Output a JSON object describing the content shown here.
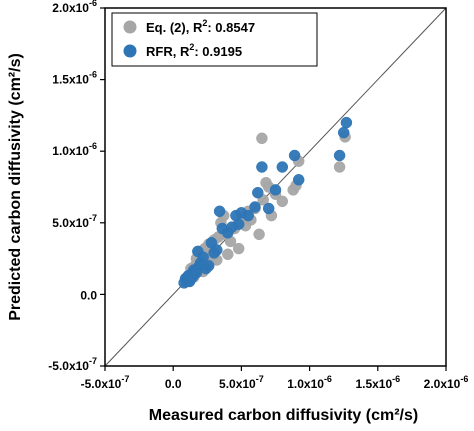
{
  "chart_data": {
    "type": "scatter",
    "xlabel": "Measured carbon diffusivity (cm²/s)",
    "ylabel": "Predicted carbon diffusivity (cm²/s)",
    "xlim": [
      -5e-07,
      2e-06
    ],
    "ylim": [
      -5e-07,
      2e-06
    ],
    "x_ticks": [
      -5e-07,
      0,
      5e-07,
      1e-06,
      1.5e-06,
      2e-06
    ],
    "y_ticks": [
      -5e-07,
      0,
      5e-07,
      1e-06,
      1.5e-06,
      2e-06
    ],
    "x_tick_labels": [
      {
        "base": "-5.0x10",
        "exp": "-7"
      },
      {
        "base": "0.0",
        "exp": ""
      },
      {
        "base": "5.0x10",
        "exp": "-7"
      },
      {
        "base": "1.0x10",
        "exp": "-6"
      },
      {
        "base": "1.5x10",
        "exp": "-6"
      },
      {
        "base": "2.0x10",
        "exp": "-6"
      }
    ],
    "y_tick_labels": [
      {
        "base": "-5.0x10",
        "exp": "-7"
      },
      {
        "base": "0.0",
        "exp": ""
      },
      {
        "base": "5.0x10",
        "exp": "-7"
      },
      {
        "base": "1.0x10",
        "exp": "-6"
      },
      {
        "base": "1.5x10",
        "exp": "-6"
      },
      {
        "base": "2.0x10",
        "exp": "-6"
      }
    ],
    "reference_line": {
      "type": "y=x",
      "color": "#555555"
    },
    "legend": {
      "placement": "top-left"
    },
    "grid": false,
    "series": [
      {
        "name": "Eq. (2), R²: 0.8547",
        "legend_prefix": "Eq. (2), R",
        "legend_exp": "2",
        "legend_suffix": ": 0.8547",
        "color": "#a6a6a6",
        "x": [
          1e-07,
          1.2e-07,
          1.4e-07,
          1.5e-07,
          1.7e-07,
          1.8e-07,
          2e-07,
          2.1e-07,
          2.2e-07,
          2.3e-07,
          2.5e-07,
          2.6e-07,
          2.8e-07,
          3e-07,
          3.2e-07,
          3.5e-07,
          3.8e-07,
          4e-07,
          4.5e-07,
          4.8e-07,
          5e-07,
          5.3e-07,
          5.5e-07,
          6e-07,
          6.3e-07,
          6.5e-07,
          7e-07,
          7.2e-07,
          7.5e-07,
          8e-07,
          8.8e-07,
          9.2e-07,
          1.22e-06,
          1.26e-06,
          1.3e-07,
          1.6e-07,
          1.9e-07,
          2.4e-07,
          2.7e-07,
          3.3e-07,
          4.2e-07,
          5.7e-07,
          6.8e-07,
          9e-07,
          3.7e-07,
          6.6e-07
        ],
        "y": [
          1e-07,
          1.3e-07,
          1.5e-07,
          1.2e-07,
          2.5e-07,
          1.8e-07,
          2.8e-07,
          2.2e-07,
          1.6e-07,
          3.2e-07,
          2e-07,
          3.5e-07,
          2.6e-07,
          3.8e-07,
          2.4e-07,
          5e-07,
          4.2e-07,
          2.8e-07,
          4.6e-07,
          3.2e-07,
          5.2e-07,
          4.8e-07,
          5.8e-07,
          6e-07,
          4.2e-07,
          1.09e-06,
          7.5e-07,
          5.5e-07,
          7e-07,
          6.5e-07,
          7.3e-07,
          9.3e-07,
          8.9e-07,
          1.1e-06,
          1.8e-07,
          2e-07,
          3e-07,
          2.7e-07,
          3e-07,
          4e-07,
          3.7e-07,
          5.2e-07,
          7.8e-07,
          7.6e-07,
          5.5e-07,
          6.6e-07
        ]
      },
      {
        "name": "RFR, R²: 0.9195",
        "legend_prefix": "RFR, R",
        "legend_exp": "2",
        "legend_suffix": ": 0.9195",
        "color": "#2e75b6",
        "x": [
          8e-08,
          9e-08,
          1e-07,
          1.1e-07,
          1.2e-07,
          1.3e-07,
          1.4e-07,
          1.5e-07,
          1.6e-07,
          1.7e-07,
          1.8e-07,
          2e-07,
          2.2e-07,
          2.4e-07,
          2.6e-07,
          2.8e-07,
          3e-07,
          3.4e-07,
          3.6e-07,
          4e-07,
          4.3e-07,
          4.6e-07,
          5e-07,
          5.5e-07,
          6e-07,
          6.5e-07,
          7e-07,
          7.5e-07,
          8e-07,
          8.9e-07,
          9.2e-07,
          1.22e-06,
          1.25e-06,
          1.27e-06,
          1.15e-07,
          1.45e-07,
          1.85e-07,
          2.1e-07,
          3.2e-07,
          4.8e-07,
          6.2e-07,
          1e-07,
          1.3e-07
        ],
        "y": [
          8e-08,
          1.1e-07,
          1e-07,
          1.3e-07,
          9e-08,
          1.4e-07,
          1.2e-07,
          1.7e-07,
          1.6e-07,
          1.5e-07,
          3e-07,
          2.2e-07,
          2.6e-07,
          1.8e-07,
          2e-07,
          3.6e-07,
          2.9e-07,
          5.8e-07,
          4.6e-07,
          4.3e-07,
          4.7e-07,
          5.5e-07,
          5.7e-07,
          5.5e-07,
          6.1e-07,
          8.9e-07,
          6e-07,
          7.3e-07,
          8.9e-07,
          9.7e-07,
          8e-07,
          9.7e-07,
          1.13e-06,
          1.2e-06,
          1e-07,
          1.3e-07,
          1.9e-07,
          2.1e-07,
          3.1e-07,
          4.9e-07,
          7.1e-07,
          9e-08,
          1.2e-07
        ]
      }
    ]
  }
}
